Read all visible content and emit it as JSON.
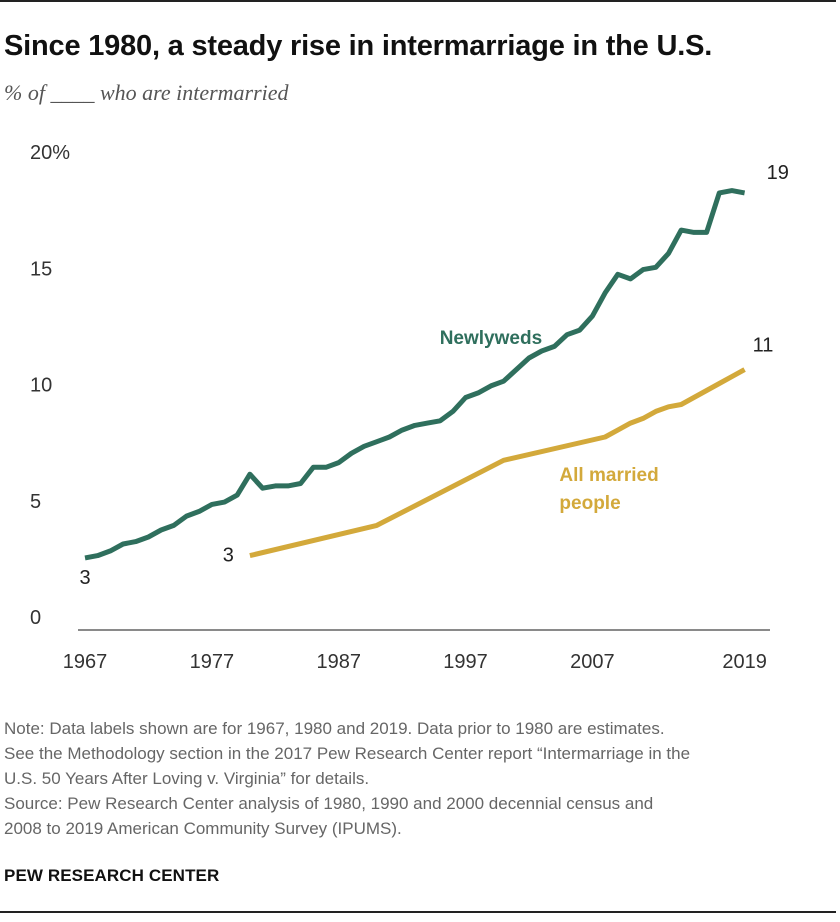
{
  "header": {
    "title": "Since 1980, a steady rise in intermarriage in the U.S.",
    "subtitle": "% of ____ who are intermarried"
  },
  "chart_data": {
    "type": "line",
    "x_tick_labels": [
      "1967",
      "1977",
      "1987",
      "1997",
      "2007",
      "2019"
    ],
    "y_tick_labels": [
      "0",
      "5",
      "10",
      "15",
      "20%"
    ],
    "y_ticks": [
      0,
      5,
      10,
      15,
      20
    ],
    "xlim": [
      1967,
      2021
    ],
    "ylim": [
      0,
      20
    ],
    "grid": false,
    "series": [
      {
        "name": "Newlyweds",
        "color": "#2f6f5d",
        "x": [
          1967,
          1968,
          1969,
          1970,
          1971,
          1972,
          1973,
          1974,
          1975,
          1976,
          1977,
          1978,
          1979,
          1980,
          1981,
          1982,
          1983,
          1984,
          1985,
          1986,
          1987,
          1988,
          1989,
          1990,
          1991,
          1992,
          1993,
          1994,
          1995,
          1996,
          1997,
          1998,
          1999,
          2000,
          2001,
          2002,
          2003,
          2004,
          2005,
          2006,
          2007,
          2008,
          2009,
          2010,
          2011,
          2012,
          2013,
          2014,
          2015,
          2016,
          2017,
          2018,
          2019
        ],
        "values": [
          3.1,
          3.2,
          3.4,
          3.7,
          3.8,
          4.0,
          4.3,
          4.5,
          4.9,
          5.1,
          5.4,
          5.5,
          5.8,
          6.7,
          6.1,
          6.2,
          6.2,
          6.3,
          7.0,
          7.0,
          7.2,
          7.6,
          7.9,
          8.1,
          8.3,
          8.6,
          8.8,
          8.9,
          9.0,
          9.4,
          10.0,
          10.2,
          10.5,
          10.7,
          11.2,
          11.7,
          12.0,
          12.2,
          12.7,
          12.9,
          13.5,
          14.5,
          15.3,
          15.1,
          15.5,
          15.6,
          16.2,
          17.2,
          17.1,
          17.1,
          18.8,
          18.9,
          18.8
        ]
      },
      {
        "name": "All married people",
        "name_lines": [
          "All married",
          "people"
        ],
        "color": "#d3a93b",
        "x": [
          1980,
          1990,
          2000,
          2008,
          2009,
          2010,
          2011,
          2012,
          2013,
          2014,
          2015,
          2016,
          2017,
          2018,
          2019
        ],
        "values": [
          3.2,
          4.5,
          7.3,
          8.3,
          8.6,
          8.9,
          9.1,
          9.4,
          9.6,
          9.7,
          10.0,
          10.3,
          10.6,
          10.9,
          11.2
        ]
      }
    ],
    "data_labels": [
      {
        "series": "Newlyweds",
        "x": 1967,
        "text": "3"
      },
      {
        "series": "Newlyweds",
        "x": 2019,
        "text": "19"
      },
      {
        "series": "All married people",
        "x": 1980,
        "text": "3"
      },
      {
        "series": "All married people",
        "x": 2019,
        "text": "11"
      }
    ]
  },
  "notes": {
    "lines": [
      "Note: Data labels shown are for 1967, 1980 and 2019. Data prior to 1980 are estimates.",
      "See the Methodology section in the 2017 Pew Research Center report “Intermarriage in the",
      "U.S. 50 Years After Loving v. Virginia” for details.",
      "Source: Pew Research Center analysis of 1980, 1990 and 2000 decennial census and",
      "2008 to 2019 American Community Survey (IPUMS)."
    ]
  },
  "footer": {
    "brand": "PEW RESEARCH CENTER"
  }
}
